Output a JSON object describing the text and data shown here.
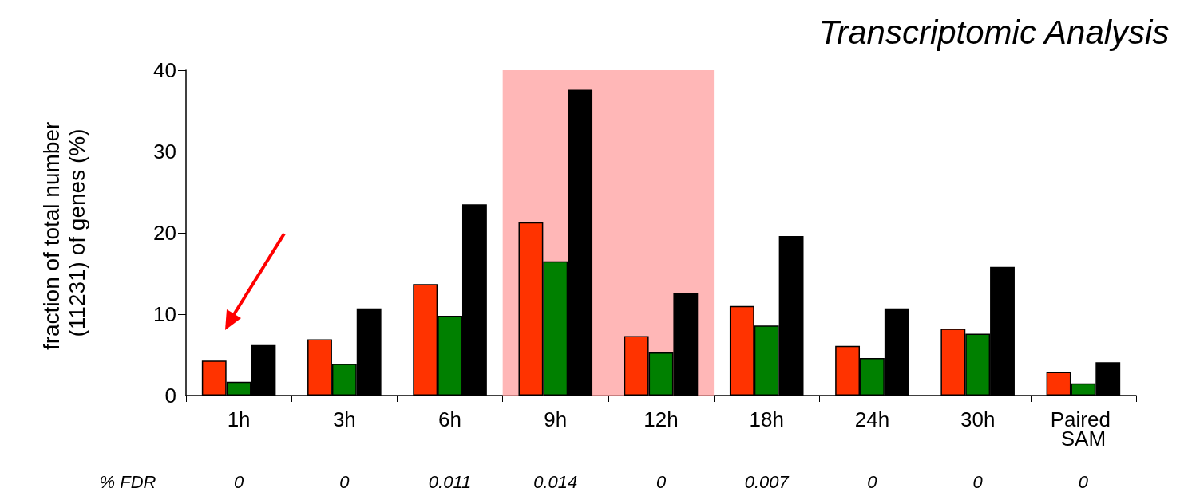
{
  "chart_data": {
    "type": "bar",
    "title": "Transcriptomic Analysis",
    "ylabel": "fraction of total number (11231) of genes (%)",
    "categories": [
      "1h",
      "3h",
      "6h",
      "9h",
      "12h",
      "18h",
      "24h",
      "30h",
      "Paired SAM"
    ],
    "series": [
      {
        "color": "#ff3300",
        "values": [
          4.3,
          6.9,
          13.7,
          21.3,
          7.3,
          11.0,
          6.1,
          8.2,
          2.9
        ]
      },
      {
        "color": "#008000",
        "values": [
          1.7,
          3.9,
          9.8,
          16.5,
          5.3,
          8.6,
          4.6,
          7.6,
          1.5
        ]
      },
      {
        "color": "#000000",
        "values": [
          6.2,
          10.7,
          23.5,
          37.6,
          12.6,
          19.6,
          10.7,
          15.8,
          4.1
        ]
      }
    ],
    "ylim": [
      0,
      40
    ],
    "yticks": [
      0,
      10,
      20,
      30,
      40
    ],
    "grid": false,
    "bands": [
      {
        "axis": "x",
        "from": "9h",
        "to": "12h",
        "color": "#ff9999"
      }
    ],
    "annotations": [
      "% FDR",
      "0",
      "0",
      "0.011",
      "0.014",
      "0",
      "0.007",
      "0",
      "0",
      "0"
    ]
  }
}
